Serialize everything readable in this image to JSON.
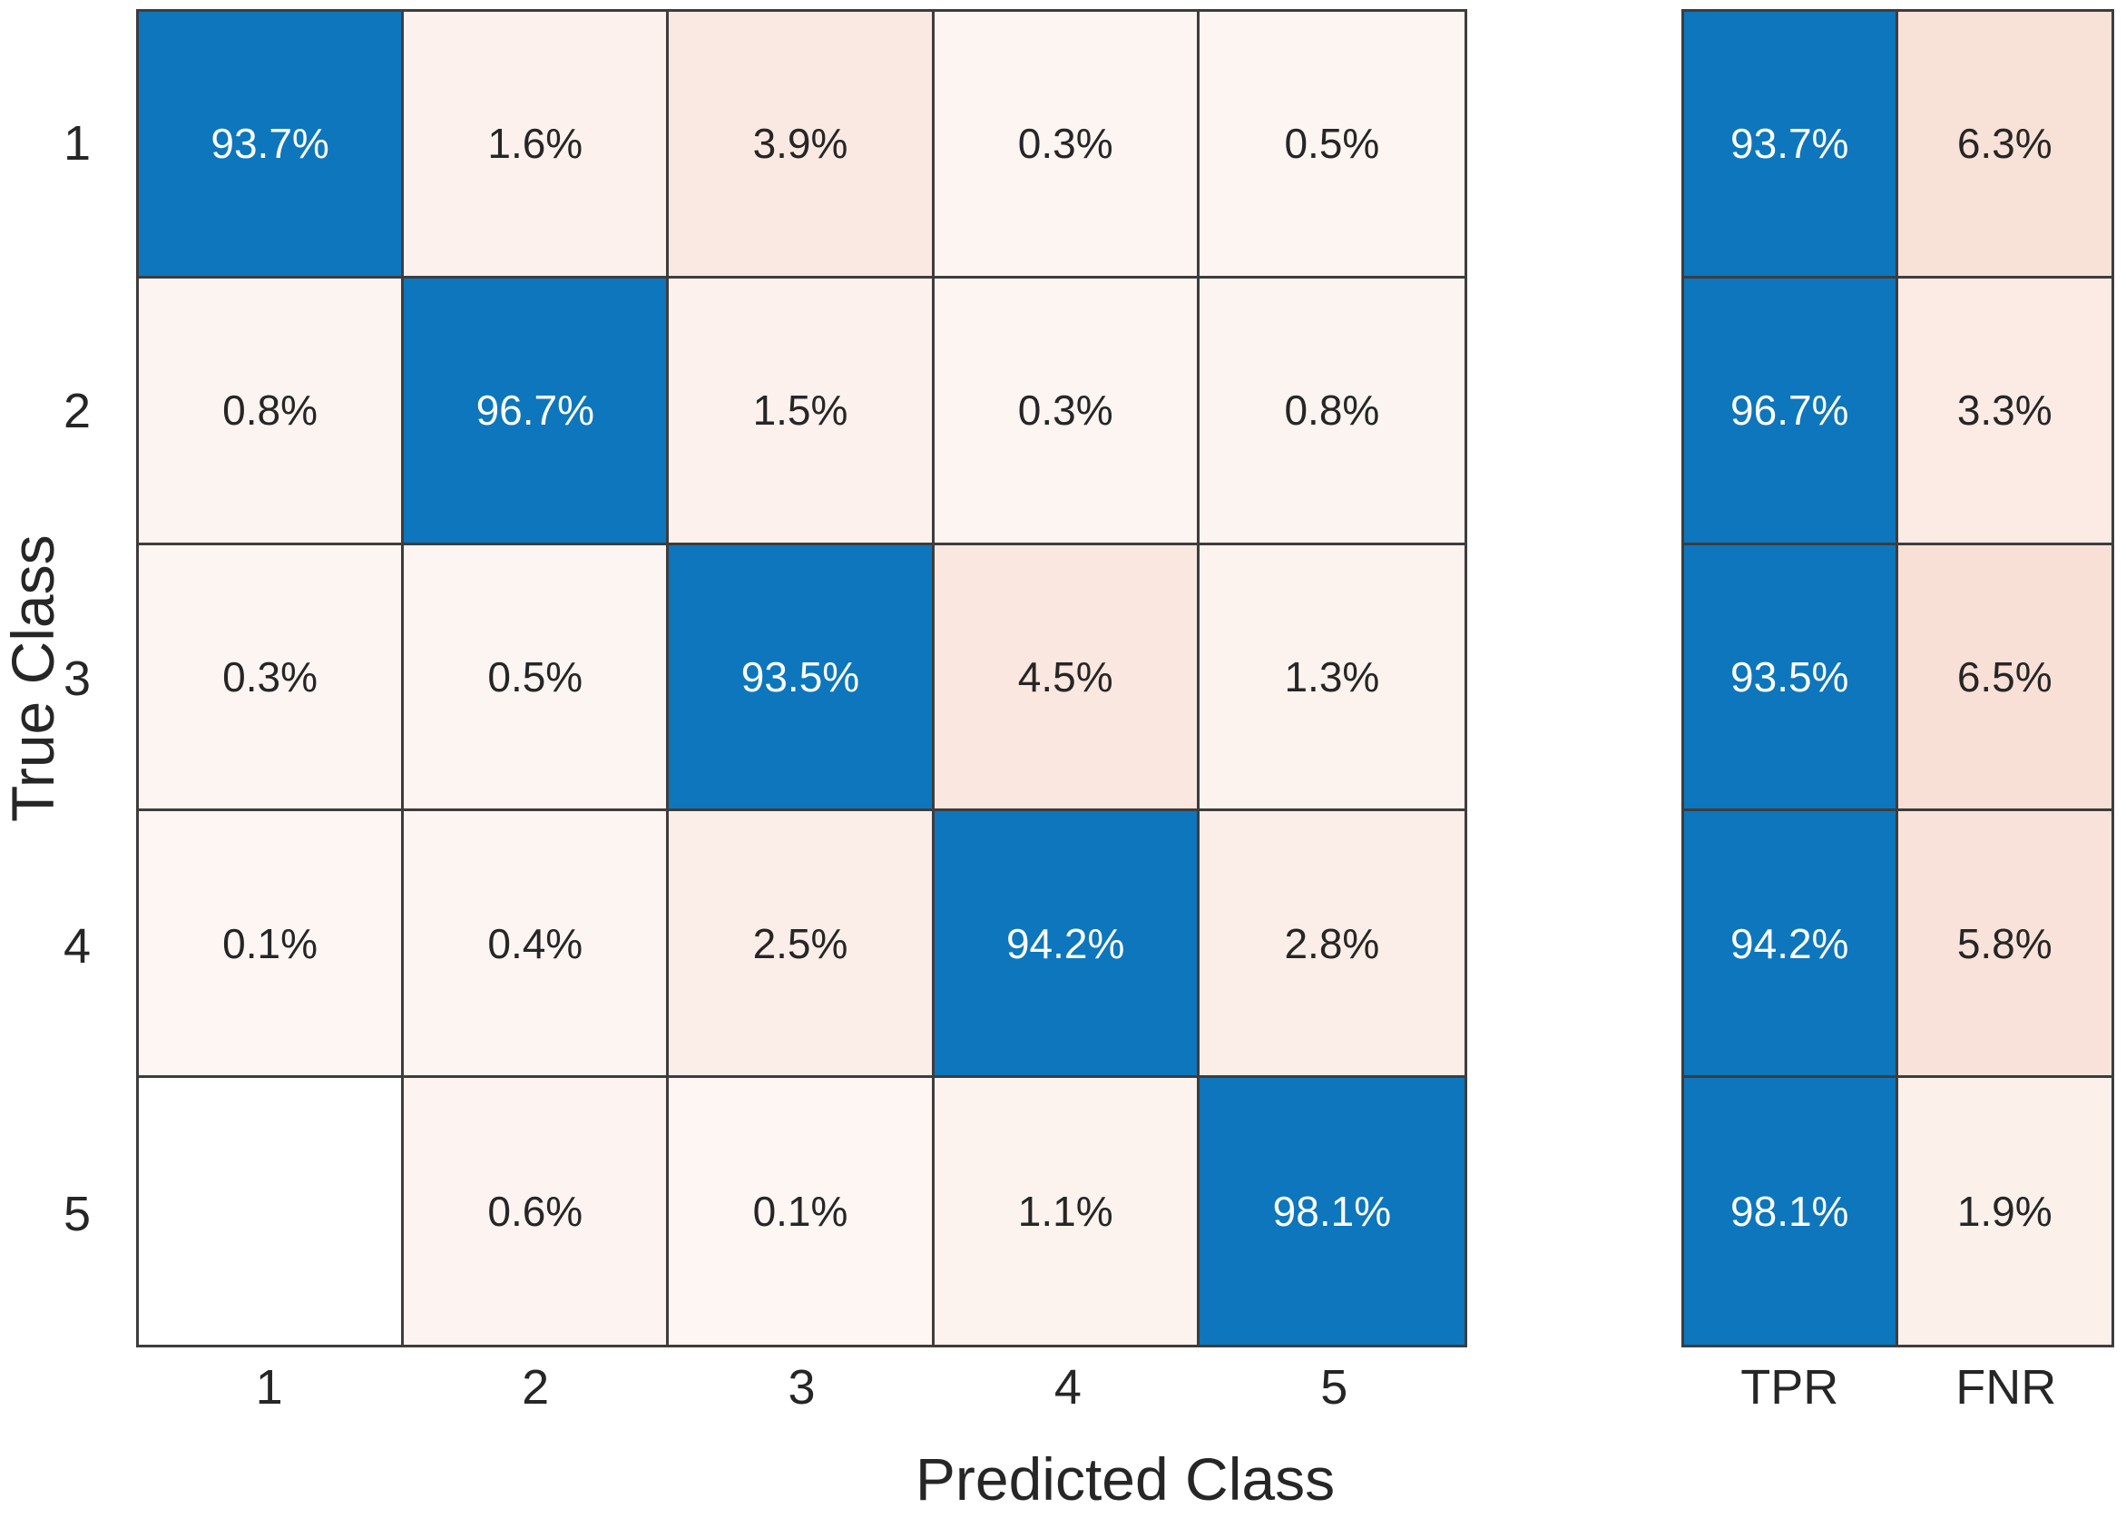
{
  "chart_data": {
    "type": "heatmap",
    "subtype": "confusion-matrix-row-normalized",
    "title": "",
    "xlabel": "Predicted Class",
    "ylabel": "True Class",
    "x_tick_labels": [
      "1",
      "2",
      "3",
      "4",
      "5"
    ],
    "y_tick_labels": [
      "1",
      "2",
      "3",
      "4",
      "5"
    ],
    "value_unit": "%",
    "grid": true,
    "legend": null,
    "matrix_percent": [
      [
        93.7,
        1.6,
        3.9,
        0.3,
        0.5
      ],
      [
        0.8,
        96.7,
        1.5,
        0.3,
        0.8
      ],
      [
        0.3,
        0.5,
        93.5,
        4.5,
        1.3
      ],
      [
        0.1,
        0.4,
        2.5,
        94.2,
        2.8
      ],
      [
        null,
        0.6,
        0.1,
        1.1,
        98.1
      ]
    ],
    "row_summary": {
      "column_labels": [
        "TPR",
        "FNR"
      ],
      "TPR": [
        93.7,
        96.7,
        93.5,
        94.2,
        98.1
      ],
      "FNR": [
        6.3,
        3.3,
        6.5,
        5.8,
        1.9
      ]
    },
    "colors": {
      "diagonal_fill": "#0d76bc",
      "off_diagonal_base": "#d95319",
      "zero_cell_fill": "#ffffff",
      "grid_line": "#3d3d3d",
      "text_dark": "#262626",
      "text_on_blue": "#ffffff",
      "background": "#ffffff"
    }
  }
}
